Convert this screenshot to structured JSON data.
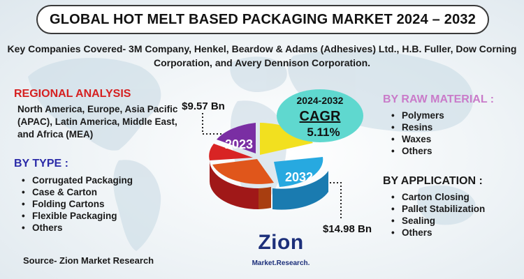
{
  "title": "GLOBAL HOT MELT BASED PACKAGING MARKET 2024 – 2032",
  "companies": "Key Companies Covered- 3M Company, Henkel, Beardow & Adams (Adhesives) Ltd., H.B. Fuller, Dow Corning Corporation, and Avery Dennison Corporation.",
  "regional": {
    "title": "REGIONAL ANALYSIS",
    "text": "North America, Europe, Asia Pacific (APAC), Latin America, Middle East, and Africa (MEA)"
  },
  "by_type": {
    "title": "BY TYPE :",
    "items": [
      "Corrugated Packaging",
      "Case & Carton",
      "Folding Cartons",
      "Flexible Packaging",
      "Others"
    ]
  },
  "raw_material": {
    "title": "BY RAW MATERIAL :",
    "items": [
      "Polymers",
      "Resins",
      "Waxes",
      "Others"
    ]
  },
  "application": {
    "title": "BY APPLICATION :",
    "items": [
      "Carton Closing",
      "Pallet Stabilization",
      "Sealing",
      "Others"
    ]
  },
  "source": "Source- Zion Market Research",
  "logo": {
    "main": "Zion",
    "sub": "Market.Research."
  },
  "colors": {
    "title_border": "#3a3a3a",
    "regional": "#d62020",
    "type": "#2b2ba8",
    "raw_material": "#c97bc9",
    "cagr_bubble": "#5fd8cf",
    "logo": "#1c2f7a"
  },
  "chart_data": {
    "type": "pie",
    "style": "3d-exploded",
    "start_year": "2023",
    "end_year": "2032",
    "start_value": "$9.57 Bn",
    "end_value": "$14.98 Bn",
    "cagr_period": "2024-2032",
    "cagr_label": "CAGR",
    "cagr_value": "5.11%",
    "slices": [
      {
        "color": "#f2e01f"
      },
      {
        "color": "#7a2ea3"
      },
      {
        "color": "#27a9e0"
      },
      {
        "color": "#e0561b"
      },
      {
        "color": "#d82424"
      }
    ]
  }
}
